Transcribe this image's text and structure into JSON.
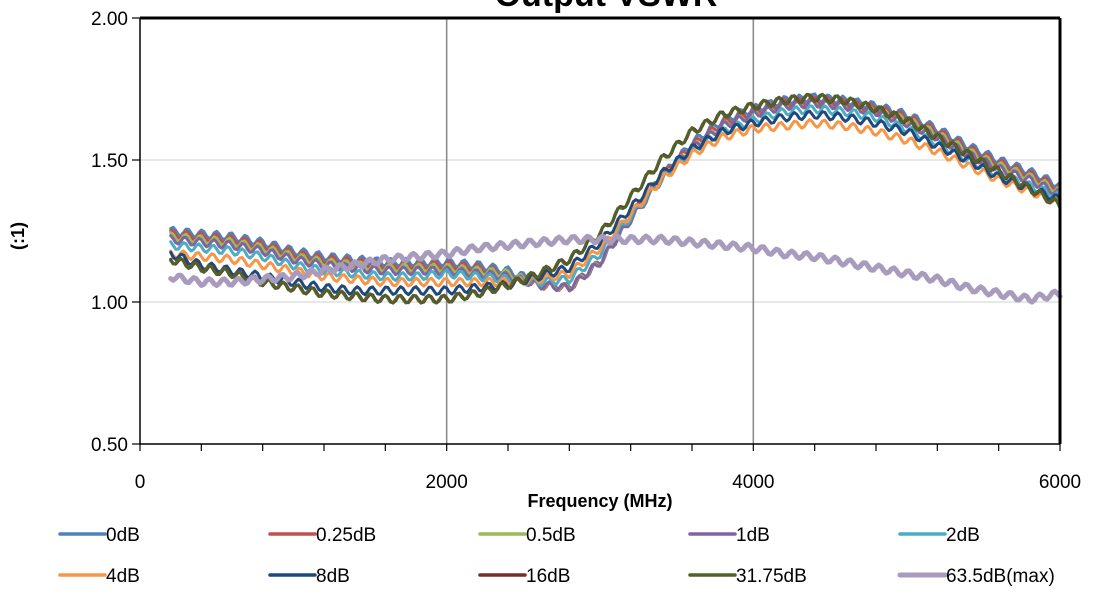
{
  "chart_data": {
    "type": "line",
    "title": "Output VSWR",
    "xlabel": "Frequency (MHz)",
    "ylabel": "(:1)",
    "xlim": [
      0,
      6000
    ],
    "ylim": [
      0.5,
      2.0
    ],
    "x_ticks": [
      0,
      2000,
      4000,
      6000
    ],
    "x_tick_labels": [
      "0",
      "2000",
      "4000",
      "6000"
    ],
    "y_ticks": [
      0.5,
      1.0,
      1.5,
      2.0
    ],
    "y_tick_labels": [
      "0.50",
      "1.00",
      "1.50",
      "2.00"
    ],
    "grid": {
      "x": true,
      "y": true
    },
    "legend_position": "bottom",
    "x": [
      200,
      400,
      600,
      800,
      1000,
      1200,
      1400,
      1600,
      1800,
      2000,
      2200,
      2400,
      2600,
      2800,
      3000,
      3200,
      3400,
      3600,
      3800,
      4000,
      4200,
      4400,
      4600,
      4800,
      5000,
      5200,
      5400,
      5600,
      5800,
      6000
    ],
    "series": [
      {
        "name": "0dB",
        "color": "#4F81BD",
        "values": [
          1.25,
          1.24,
          1.23,
          1.21,
          1.18,
          1.16,
          1.15,
          1.14,
          1.14,
          1.14,
          1.13,
          1.11,
          1.07,
          1.05,
          1.14,
          1.3,
          1.44,
          1.56,
          1.64,
          1.68,
          1.71,
          1.72,
          1.71,
          1.69,
          1.66,
          1.61,
          1.55,
          1.5,
          1.46,
          1.41
        ]
      },
      {
        "name": "0.25dB",
        "color": "#C0504D",
        "values": [
          1.24,
          1.23,
          1.22,
          1.2,
          1.17,
          1.15,
          1.14,
          1.13,
          1.13,
          1.13,
          1.12,
          1.1,
          1.06,
          1.05,
          1.14,
          1.3,
          1.44,
          1.55,
          1.63,
          1.67,
          1.7,
          1.71,
          1.7,
          1.68,
          1.65,
          1.6,
          1.54,
          1.49,
          1.45,
          1.4
        ]
      },
      {
        "name": "0.5dB",
        "color": "#9BBB59",
        "values": [
          1.23,
          1.22,
          1.21,
          1.19,
          1.16,
          1.14,
          1.13,
          1.12,
          1.12,
          1.12,
          1.11,
          1.1,
          1.06,
          1.05,
          1.14,
          1.29,
          1.43,
          1.54,
          1.62,
          1.66,
          1.69,
          1.7,
          1.69,
          1.67,
          1.64,
          1.59,
          1.53,
          1.48,
          1.44,
          1.39
        ]
      },
      {
        "name": "1dB",
        "color": "#8064A2",
        "values": [
          1.22,
          1.21,
          1.2,
          1.18,
          1.15,
          1.13,
          1.12,
          1.11,
          1.11,
          1.11,
          1.1,
          1.09,
          1.06,
          1.05,
          1.14,
          1.29,
          1.43,
          1.54,
          1.62,
          1.66,
          1.69,
          1.7,
          1.69,
          1.67,
          1.63,
          1.58,
          1.52,
          1.47,
          1.43,
          1.38
        ]
      },
      {
        "name": "2dB",
        "color": "#4BACC6",
        "values": [
          1.2,
          1.19,
          1.18,
          1.16,
          1.13,
          1.11,
          1.1,
          1.09,
          1.09,
          1.1,
          1.09,
          1.08,
          1.07,
          1.08,
          1.17,
          1.3,
          1.43,
          1.53,
          1.6,
          1.64,
          1.67,
          1.68,
          1.67,
          1.65,
          1.61,
          1.56,
          1.5,
          1.45,
          1.41,
          1.37
        ]
      },
      {
        "name": "4dB",
        "color": "#F79646",
        "values": [
          1.17,
          1.16,
          1.15,
          1.13,
          1.11,
          1.09,
          1.08,
          1.07,
          1.07,
          1.07,
          1.07,
          1.07,
          1.08,
          1.1,
          1.19,
          1.31,
          1.43,
          1.52,
          1.58,
          1.61,
          1.62,
          1.63,
          1.62,
          1.6,
          1.57,
          1.53,
          1.48,
          1.43,
          1.39,
          1.35
        ]
      },
      {
        "name": "8dB",
        "color": "#1F497D",
        "values": [
          1.17,
          1.13,
          1.11,
          1.09,
          1.07,
          1.05,
          1.04,
          1.04,
          1.04,
          1.04,
          1.05,
          1.06,
          1.09,
          1.12,
          1.21,
          1.33,
          1.45,
          1.54,
          1.6,
          1.63,
          1.65,
          1.66,
          1.65,
          1.63,
          1.6,
          1.55,
          1.5,
          1.44,
          1.4,
          1.36
        ]
      },
      {
        "name": "16dB",
        "color": "#772C2A",
        "values": [
          1.15,
          1.12,
          1.1,
          1.07,
          1.05,
          1.03,
          1.02,
          1.01,
          1.01,
          1.01,
          1.03,
          1.06,
          1.1,
          1.15,
          1.24,
          1.37,
          1.5,
          1.6,
          1.66,
          1.69,
          1.71,
          1.72,
          1.71,
          1.68,
          1.64,
          1.58,
          1.52,
          1.46,
          1.4,
          1.34
        ]
      },
      {
        "name": "31.75dB",
        "color": "#4F6228",
        "values": [
          1.15,
          1.12,
          1.1,
          1.07,
          1.05,
          1.03,
          1.02,
          1.01,
          1.01,
          1.01,
          1.03,
          1.06,
          1.1,
          1.15,
          1.24,
          1.37,
          1.5,
          1.6,
          1.66,
          1.69,
          1.71,
          1.72,
          1.71,
          1.68,
          1.64,
          1.58,
          1.52,
          1.46,
          1.4,
          1.34
        ]
      },
      {
        "name": "63.5dB(max)",
        "color": "#A99BBD",
        "values": [
          1.09,
          1.07,
          1.07,
          1.08,
          1.09,
          1.11,
          1.13,
          1.15,
          1.16,
          1.17,
          1.19,
          1.2,
          1.21,
          1.22,
          1.22,
          1.22,
          1.22,
          1.21,
          1.2,
          1.19,
          1.17,
          1.16,
          1.14,
          1.12,
          1.1,
          1.08,
          1.05,
          1.03,
          1.01,
          1.03
        ]
      }
    ]
  }
}
